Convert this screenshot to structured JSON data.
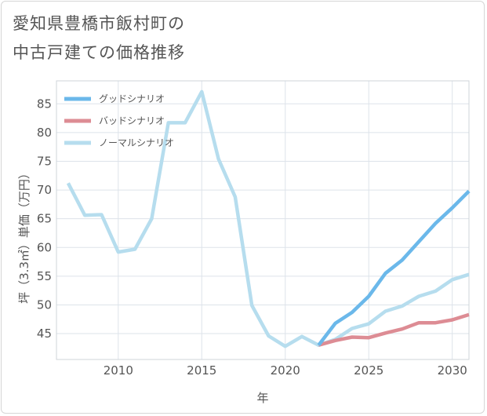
{
  "title_line1": "愛知県豊橋市飯村町の",
  "title_line2": "中古戸建ての価格推移",
  "chart_data": {
    "type": "line",
    "title": "愛知県豊橋市飯村町の中古戸建ての価格推移",
    "xlabel": "年",
    "ylabel": "坪（3.3㎡）単価（万円）",
    "xlim": [
      2006.3,
      2031
    ],
    "ylim": [
      40.5,
      89
    ],
    "xticks": [
      2010,
      2015,
      2020,
      2025,
      2030
    ],
    "yticks": [
      45,
      50,
      55,
      60,
      65,
      70,
      75,
      80,
      85
    ],
    "grid": true,
    "legend_position": "top-left",
    "series": [
      {
        "name": "グッドシナリオ",
        "color": "#6bb8ea",
        "x": [
          2022,
          2023,
          2024,
          2025,
          2026,
          2027,
          2028,
          2029,
          2030,
          2031
        ],
        "values": [
          43.0,
          46.8,
          48.7,
          51.5,
          55.5,
          57.8,
          61.0,
          64.2,
          66.9,
          69.8
        ]
      },
      {
        "name": "バッドシナリオ",
        "color": "#dd8c94",
        "x": [
          2022,
          2023,
          2024,
          2025,
          2026,
          2027,
          2028,
          2029,
          2030,
          2031
        ],
        "values": [
          43.0,
          43.8,
          44.4,
          44.3,
          45.1,
          45.8,
          46.9,
          46.9,
          47.4,
          48.3
        ]
      },
      {
        "name": "ノーマルシナリオ",
        "color": "#b6ddee",
        "x": [
          2007,
          2008,
          2009,
          2010,
          2011,
          2012,
          2013,
          2014,
          2015,
          2016,
          2017,
          2018,
          2019,
          2020,
          2021,
          2022,
          2023,
          2024,
          2025,
          2026,
          2027,
          2028,
          2029,
          2030,
          2031
        ],
        "values": [
          71.2,
          65.6,
          65.7,
          59.2,
          59.7,
          65.0,
          81.7,
          81.7,
          87.1,
          75.4,
          68.8,
          49.9,
          44.6,
          42.8,
          44.5,
          43.0,
          44.0,
          45.9,
          46.7,
          48.9,
          49.8,
          51.5,
          52.4,
          54.4,
          55.3
        ]
      }
    ]
  }
}
